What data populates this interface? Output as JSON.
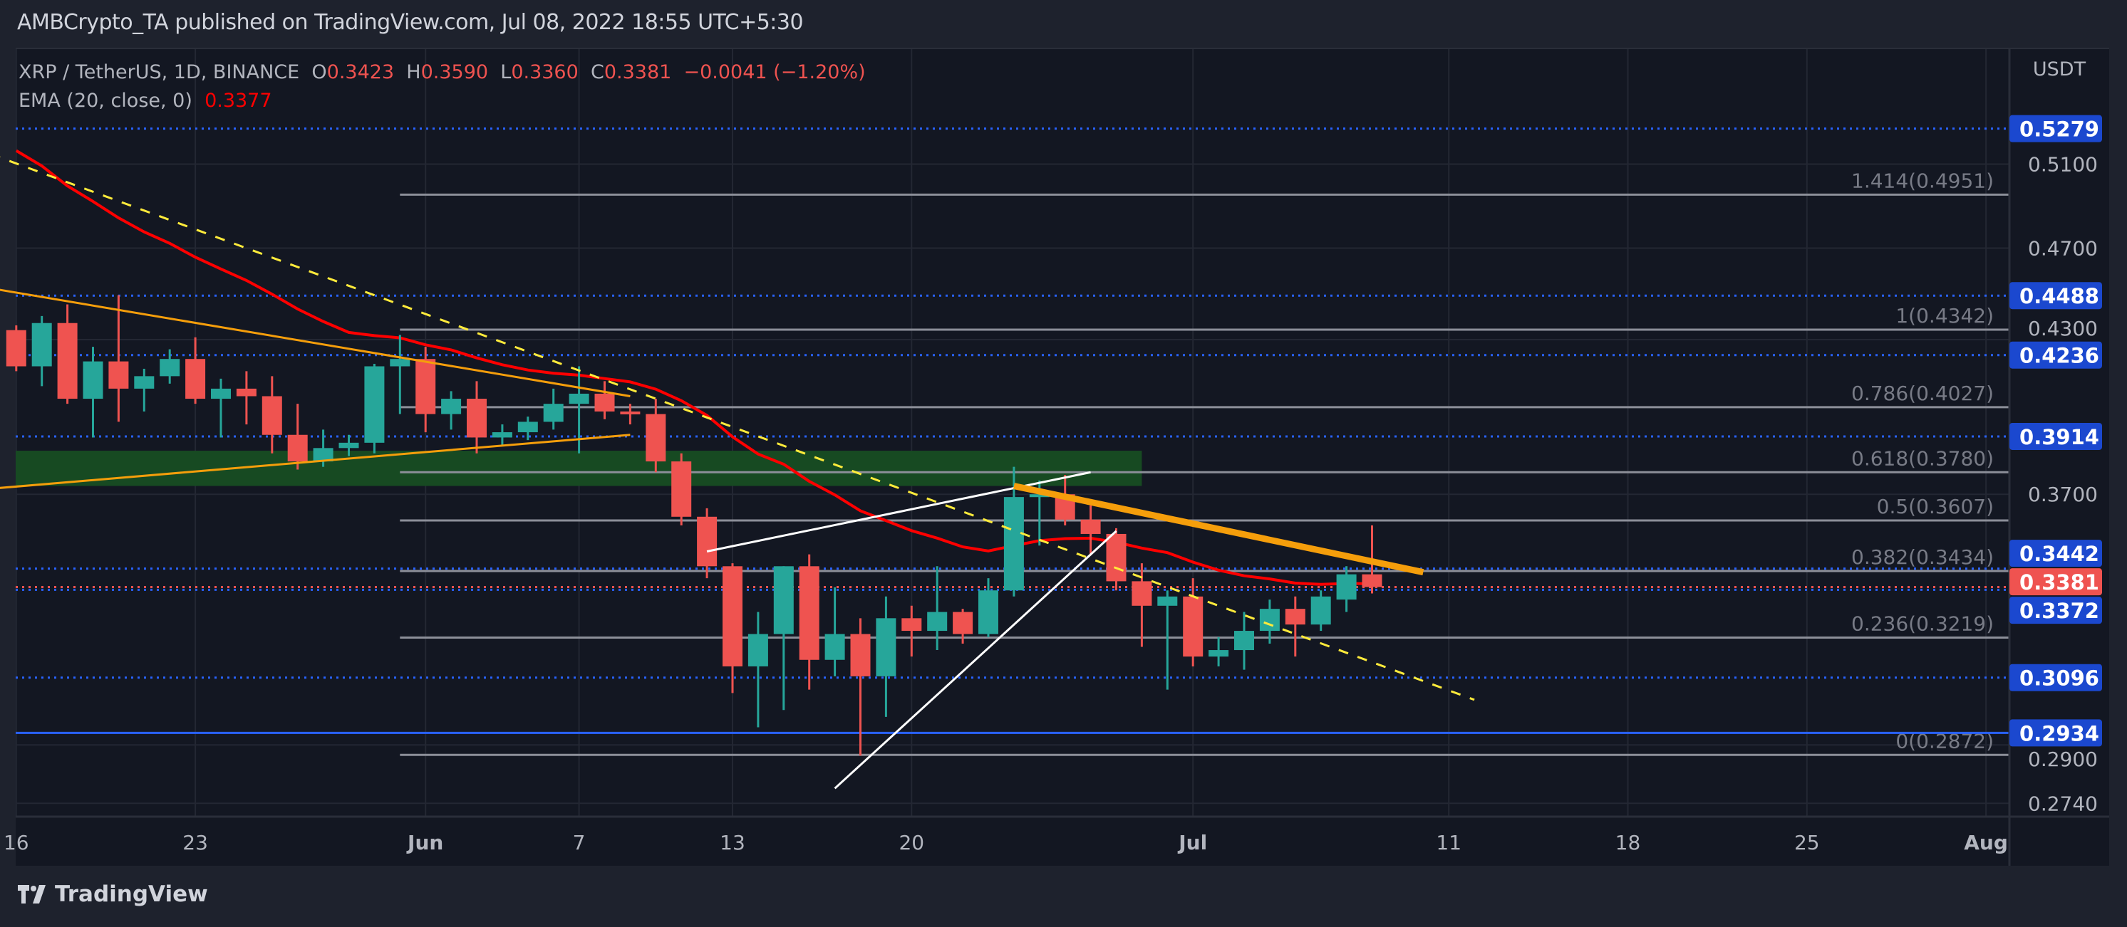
{
  "header": {
    "title": "AMBCrypto_TA published on TradingView.com, Jul 08, 2022 18:55 UTC+5:30"
  },
  "legend": {
    "symbol": "XRP / TetherUS, 1D, BINANCE",
    "o_label": "O",
    "o": "0.3423",
    "h_label": "H",
    "h": "0.3590",
    "l_label": "L",
    "l": "0.3360",
    "c_label": "C",
    "c": "0.3381",
    "change": "−0.0041 (−1.20%)",
    "ema_label": "EMA (20, close, 0)",
    "ema_value": "0.3377"
  },
  "price_axis": {
    "currency": "USDT"
  },
  "footer": {
    "brand": "TradingView",
    "logo_icon": "tradingview-logo-icon"
  },
  "colors": {
    "up": "#26a69a",
    "down": "#ef5350",
    "ema": "#ff0000",
    "level_blue": "#2962ff",
    "badge_blue": "#1b48cf",
    "fib": "#8c8f99",
    "trend_orange": "#f59e0b",
    "trend_yellow": "#ffeb3b",
    "wedge": "#ffffff",
    "zone": "#174a22",
    "background": "#131722"
  },
  "chart_data": {
    "type": "candlestick",
    "y_scale": "log",
    "ylim": [
      0.268,
      0.56
    ],
    "y_ticks": [
      "0.5100",
      "0.4700",
      "0.4300",
      "0.3700",
      "0.2900",
      "0.2740"
    ],
    "x_ticks": [
      {
        "date": "2022-05-16",
        "label": "16"
      },
      {
        "date": "2022-05-23",
        "label": "23"
      },
      {
        "date": "2022-06-01",
        "label": "Jun"
      },
      {
        "date": "2022-06-07",
        "label": "7"
      },
      {
        "date": "2022-06-13",
        "label": "13"
      },
      {
        "date": "2022-06-20",
        "label": "20"
      },
      {
        "date": "2022-07-01",
        "label": "Jul"
      },
      {
        "date": "2022-07-11",
        "label": "11"
      },
      {
        "date": "2022-07-18",
        "label": "18"
      },
      {
        "date": "2022-07-25",
        "label": "25"
      },
      {
        "date": "2022-08-01",
        "label": "Aug"
      }
    ],
    "ohlc_columns": [
      "date",
      "open",
      "high",
      "low",
      "close"
    ],
    "candles": [
      [
        "2022-05-16",
        0.434,
        0.436,
        0.417,
        0.419
      ],
      [
        "2022-05-17",
        0.419,
        0.44,
        0.411,
        0.437
      ],
      [
        "2022-05-18",
        0.437,
        0.445,
        0.404,
        0.406
      ],
      [
        "2022-05-19",
        0.406,
        0.427,
        0.391,
        0.421
      ],
      [
        "2022-05-20",
        0.421,
        0.449,
        0.397,
        0.41
      ],
      [
        "2022-05-21",
        0.41,
        0.418,
        0.401,
        0.415
      ],
      [
        "2022-05-22",
        0.415,
        0.426,
        0.412,
        0.422
      ],
      [
        "2022-05-23",
        0.422,
        0.431,
        0.404,
        0.406
      ],
      [
        "2022-05-24",
        0.406,
        0.414,
        0.391,
        0.41
      ],
      [
        "2022-05-25",
        0.41,
        0.417,
        0.396,
        0.407
      ],
      [
        "2022-05-26",
        0.407,
        0.415,
        0.385,
        0.392
      ],
      [
        "2022-05-27",
        0.392,
        0.404,
        0.379,
        0.382
      ],
      [
        "2022-05-28",
        0.382,
        0.394,
        0.38,
        0.387
      ],
      [
        "2022-05-29",
        0.387,
        0.392,
        0.384,
        0.389
      ],
      [
        "2022-05-30",
        0.389,
        0.42,
        0.385,
        0.419
      ],
      [
        "2022-05-31",
        0.419,
        0.432,
        0.4,
        0.422
      ],
      [
        "2022-06-01",
        0.422,
        0.427,
        0.393,
        0.4
      ],
      [
        "2022-06-02",
        0.4,
        0.409,
        0.394,
        0.406
      ],
      [
        "2022-06-03",
        0.406,
        0.413,
        0.385,
        0.391
      ],
      [
        "2022-06-04",
        0.391,
        0.396,
        0.388,
        0.393
      ],
      [
        "2022-06-05",
        0.393,
        0.399,
        0.39,
        0.397
      ],
      [
        "2022-06-06",
        0.397,
        0.41,
        0.394,
        0.404
      ],
      [
        "2022-06-07",
        0.404,
        0.419,
        0.385,
        0.408
      ],
      [
        "2022-06-08",
        0.408,
        0.413,
        0.398,
        0.401
      ],
      [
        "2022-06-09",
        0.401,
        0.404,
        0.396,
        0.4
      ],
      [
        "2022-06-10",
        0.4,
        0.406,
        0.378,
        0.382
      ],
      [
        "2022-06-11",
        0.382,
        0.385,
        0.359,
        0.362
      ],
      [
        "2022-06-12",
        0.362,
        0.365,
        0.341,
        0.345
      ],
      [
        "2022-06-13",
        0.345,
        0.346,
        0.305,
        0.313
      ],
      [
        "2022-06-14",
        0.313,
        0.33,
        0.295,
        0.323
      ],
      [
        "2022-06-15",
        0.323,
        0.345,
        0.3,
        0.345
      ],
      [
        "2022-06-16",
        0.345,
        0.349,
        0.306,
        0.315
      ],
      [
        "2022-06-17",
        0.315,
        0.338,
        0.31,
        0.323
      ],
      [
        "2022-06-18",
        0.323,
        0.328,
        0.287,
        0.31
      ],
      [
        "2022-06-19",
        0.31,
        0.335,
        0.298,
        0.328
      ],
      [
        "2022-06-20",
        0.328,
        0.332,
        0.316,
        0.324
      ],
      [
        "2022-06-21",
        0.324,
        0.345,
        0.318,
        0.33
      ],
      [
        "2022-06-22",
        0.33,
        0.331,
        0.32,
        0.323
      ],
      [
        "2022-06-23",
        0.323,
        0.341,
        0.322,
        0.337
      ],
      [
        "2022-06-24",
        0.337,
        0.38,
        0.335,
        0.369
      ],
      [
        "2022-06-25",
        0.369,
        0.375,
        0.352,
        0.37
      ],
      [
        "2022-06-26",
        0.37,
        0.377,
        0.359,
        0.361
      ],
      [
        "2022-06-27",
        0.361,
        0.366,
        0.349,
        0.356
      ],
      [
        "2022-06-28",
        0.356,
        0.358,
        0.337,
        0.34
      ],
      [
        "2022-06-29",
        0.34,
        0.346,
        0.319,
        0.332
      ],
      [
        "2022-06-30",
        0.332,
        0.337,
        0.306,
        0.335
      ],
      [
        "2022-07-01",
        0.335,
        0.341,
        0.313,
        0.316
      ],
      [
        "2022-07-02",
        0.316,
        0.322,
        0.313,
        0.318
      ],
      [
        "2022-07-03",
        0.318,
        0.33,
        0.312,
        0.324
      ],
      [
        "2022-07-04",
        0.324,
        0.334,
        0.32,
        0.331
      ],
      [
        "2022-07-05",
        0.331,
        0.335,
        0.316,
        0.326
      ],
      [
        "2022-07-06",
        0.326,
        0.337,
        0.324,
        0.335
      ],
      [
        "2022-07-07",
        0.334,
        0.345,
        0.33,
        0.3423
      ],
      [
        "2022-07-08",
        0.3423,
        0.359,
        0.336,
        0.3381
      ]
    ],
    "indicators": [
      {
        "name": "EMA (20, close, 0)",
        "last": 0.3377
      }
    ],
    "fib_retracement": {
      "start_date": "2022-05-31",
      "levels": [
        {
          "label": "1.414(0.4951)",
          "price": 0.4951
        },
        {
          "label": "1(0.4342)",
          "price": 0.4342
        },
        {
          "label": "0.786(0.4027)",
          "price": 0.4027
        },
        {
          "label": "0.618(0.3780)",
          "price": 0.378
        },
        {
          "label": "0.5(0.3607)",
          "price": 0.3607
        },
        {
          "label": "0.382(0.3434)",
          "price": 0.3434
        },
        {
          "label": "0.236(0.3219)",
          "price": 0.3219
        },
        {
          "label": "0(0.2872)",
          "price": 0.2872
        }
      ]
    },
    "horizontal_levels": [
      {
        "price": 0.5279,
        "label": "0.5279",
        "style": "dotted"
      },
      {
        "price": 0.4488,
        "label": "0.4488",
        "style": "dotted"
      },
      {
        "price": 0.4236,
        "label": "0.4236",
        "style": "dotted"
      },
      {
        "price": 0.3914,
        "label": "0.3914",
        "style": "dotted"
      },
      {
        "price": 0.3442,
        "label": "0.3442",
        "style": "dotted"
      },
      {
        "price": 0.3372,
        "label": "0.3372",
        "style": "dotted"
      },
      {
        "price": 0.3096,
        "label": "0.3096",
        "style": "dotted"
      },
      {
        "price": 0.2934,
        "label": "0.2934",
        "style": "solid"
      }
    ],
    "last_price": {
      "price": 0.3381,
      "label": "0.3381"
    },
    "zone": {
      "from_date": "2022-05-15",
      "to_date": "2022-06-29",
      "low": 0.373,
      "high": 0.386
    },
    "trendlines": [
      {
        "id": "orange-upper",
        "color": "trend_orange",
        "width": 3,
        "p1": [
          "2022-05-15",
          0.452
        ],
        "p2": [
          "2022-06-09",
          0.407
        ]
      },
      {
        "id": "orange-lower",
        "color": "trend_orange",
        "width": 3,
        "p1": [
          "2022-05-15",
          0.372
        ],
        "p2": [
          "2022-06-09",
          0.392
        ]
      },
      {
        "id": "yellow-dashed",
        "color": "trend_yellow",
        "width": 3,
        "dash": true,
        "p1": [
          "2022-05-15",
          0.515
        ],
        "p2": [
          "2022-07-12",
          0.303
        ]
      },
      {
        "id": "wedge-upper",
        "color": "wedge",
        "width": 3,
        "p1": [
          "2022-06-12",
          0.35
        ],
        "p2": [
          "2022-06-27",
          0.378
        ]
      },
      {
        "id": "wedge-lower",
        "color": "wedge",
        "width": 3,
        "p1": [
          "2022-06-17",
          0.278
        ],
        "p2": [
          "2022-06-28",
          0.357
        ]
      },
      {
        "id": "orange-resistance",
        "color": "trend_orange",
        "width": 9,
        "p1": [
          "2022-06-24",
          0.373
        ],
        "p2": [
          "2022-07-10",
          0.343
        ]
      }
    ]
  }
}
